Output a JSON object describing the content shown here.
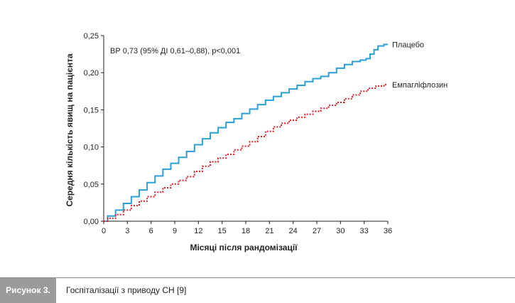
{
  "figure": {
    "caption_label": "Рисунок 3.",
    "caption_text": "Госпіталізації з приводу СН [9]"
  },
  "chart_data": {
    "type": "line",
    "title": "",
    "xlabel": "Місяці після рандомізації",
    "ylabel": "Середня кількість явищ на пацієнта",
    "xlim": [
      0,
      36
    ],
    "ylim": [
      0,
      0.25
    ],
    "x_ticks": [
      0,
      3,
      6,
      9,
      12,
      15,
      18,
      21,
      24,
      27,
      30,
      33,
      36
    ],
    "x_tick_labels": [
      "0",
      "3",
      "6",
      "9",
      "12",
      "15",
      "18",
      "21",
      "24",
      "27",
      "30",
      "33",
      "36"
    ],
    "y_ticks": [
      0,
      0.05,
      0.1,
      0.15,
      0.2,
      0.25
    ],
    "y_tick_labels": [
      "0,00",
      "0,05",
      "0,10",
      "0,15",
      "0,20",
      "0,25"
    ],
    "grid": false,
    "annotation": "ВР 0,73 (95% ДІ 0,61–0,88), p<0,001",
    "series": [
      {
        "name": "Плацебо",
        "color": "#2c9fd4",
        "style": "solid",
        "x": [
          0,
          1,
          2,
          3,
          4,
          5,
          6,
          7,
          8,
          9,
          10,
          11,
          12,
          13,
          14,
          15,
          16,
          17,
          18,
          19,
          20,
          21,
          22,
          23,
          24,
          25,
          26,
          27,
          28,
          29,
          30,
          31,
          32,
          33,
          33.5,
          34,
          34.5,
          35,
          36
        ],
        "y": [
          0,
          0.007,
          0.015,
          0.024,
          0.033,
          0.042,
          0.052,
          0.061,
          0.07,
          0.078,
          0.086,
          0.094,
          0.103,
          0.111,
          0.119,
          0.126,
          0.133,
          0.138,
          0.145,
          0.151,
          0.157,
          0.163,
          0.168,
          0.173,
          0.178,
          0.183,
          0.188,
          0.192,
          0.195,
          0.2,
          0.206,
          0.211,
          0.215,
          0.217,
          0.219,
          0.225,
          0.231,
          0.236,
          0.238
        ]
      },
      {
        "name": "Емпагліфлозин",
        "color": "#d42027",
        "style": "dotted",
        "x": [
          0,
          1,
          2,
          3,
          4,
          5,
          6,
          7,
          8,
          9,
          10,
          11,
          12,
          13,
          14,
          15,
          16,
          17,
          18,
          19,
          20,
          21,
          22,
          23,
          24,
          25,
          26,
          27,
          28,
          29,
          30,
          31,
          32,
          33,
          34,
          35,
          36
        ],
        "y": [
          0,
          0.004,
          0.009,
          0.015,
          0.021,
          0.027,
          0.033,
          0.039,
          0.045,
          0.05,
          0.055,
          0.06,
          0.067,
          0.074,
          0.08,
          0.085,
          0.09,
          0.096,
          0.101,
          0.107,
          0.114,
          0.121,
          0.127,
          0.132,
          0.136,
          0.14,
          0.144,
          0.148,
          0.152,
          0.156,
          0.16,
          0.165,
          0.17,
          0.175,
          0.179,
          0.182,
          0.184
        ]
      }
    ]
  }
}
